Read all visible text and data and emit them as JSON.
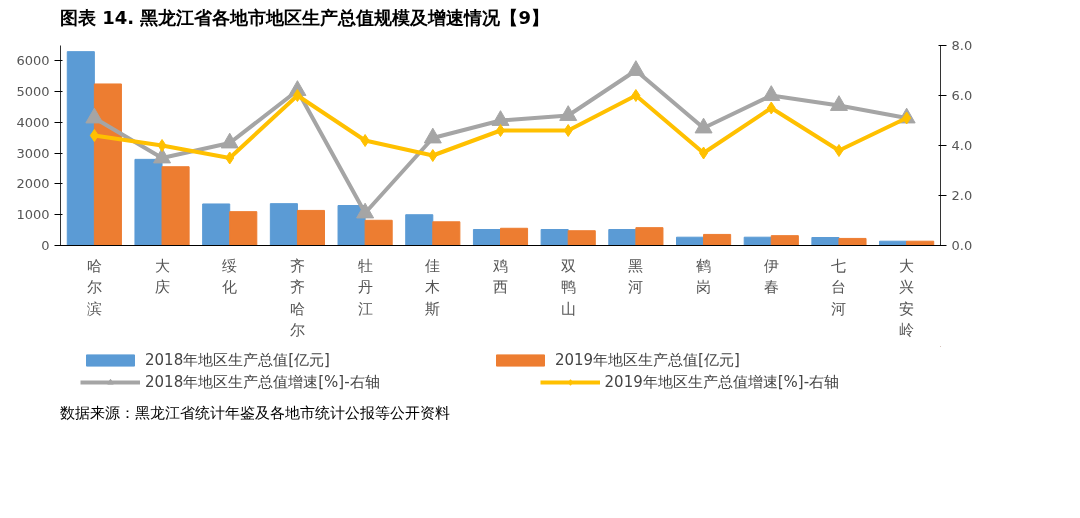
{
  "chart_data": {
    "type": "bar",
    "title": "图表 14. 黑龙江省各地市地区生产总值规模及增速情况【9】",
    "annotations": [
      "数据来源：黑龙江省统计年鉴及各地市统计公报等公开资料"
    ],
    "categories": [
      "哈尔滨",
      "大庆",
      "绥化",
      "齐齐哈尔",
      "牡丹江",
      "佳木斯",
      "鸡西",
      "双鸭山",
      "黑河",
      "鹤岗",
      "伊春",
      "七台河",
      "大兴安岭"
    ],
    "series": [
      {
        "name": "2018年地区生产总值[亿元]",
        "color": "#5b9bd5",
        "values": [
          6300,
          2800,
          1350,
          1360,
          1300,
          1000,
          520,
          520,
          520,
          270,
          270,
          260,
          140
        ]
      },
      {
        "name": "2019年地区生产总值[亿元]",
        "color": "#ed7d31",
        "values": [
          5250,
          2560,
          1100,
          1140,
          820,
          770,
          560,
          480,
          580,
          360,
          320,
          230,
          140
        ]
      },
      {
        "name": "2018年地区生产总值增速[%]-右轴",
        "type": "line",
        "axis": "y2",
        "marker": "triangle",
        "color": "#a5a5a5",
        "values": [
          5.1,
          3.5,
          4.1,
          6.2,
          1.3,
          4.3,
          5.0,
          5.2,
          7.0,
          4.7,
          6.0,
          5.6,
          5.1
        ]
      },
      {
        "name": "2019年地区生产总值增速[%]-右轴",
        "type": "line",
        "axis": "y2",
        "marker": "diamond",
        "color": "#ffc000",
        "values": [
          4.4,
          4.0,
          3.5,
          6.0,
          4.2,
          3.6,
          4.6,
          4.6,
          6.0,
          3.7,
          5.5,
          3.8,
          5.1
        ]
      }
    ],
    "ylim": [
      0,
      6500
    ],
    "yticks": [
      0,
      1000,
      2000,
      3000,
      4000,
      5000,
      6000
    ],
    "y2lim": [
      0,
      8
    ],
    "y2ticks": [
      {
        "value": 0,
        "label": "0.0"
      },
      {
        "value": 2,
        "label": "2.0"
      },
      {
        "value": 4,
        "label": "4.0"
      },
      {
        "value": 6,
        "label": "6.0"
      },
      {
        "value": 8,
        "label": "8.0"
      }
    ],
    "grid": false,
    "legend": "bottom"
  }
}
